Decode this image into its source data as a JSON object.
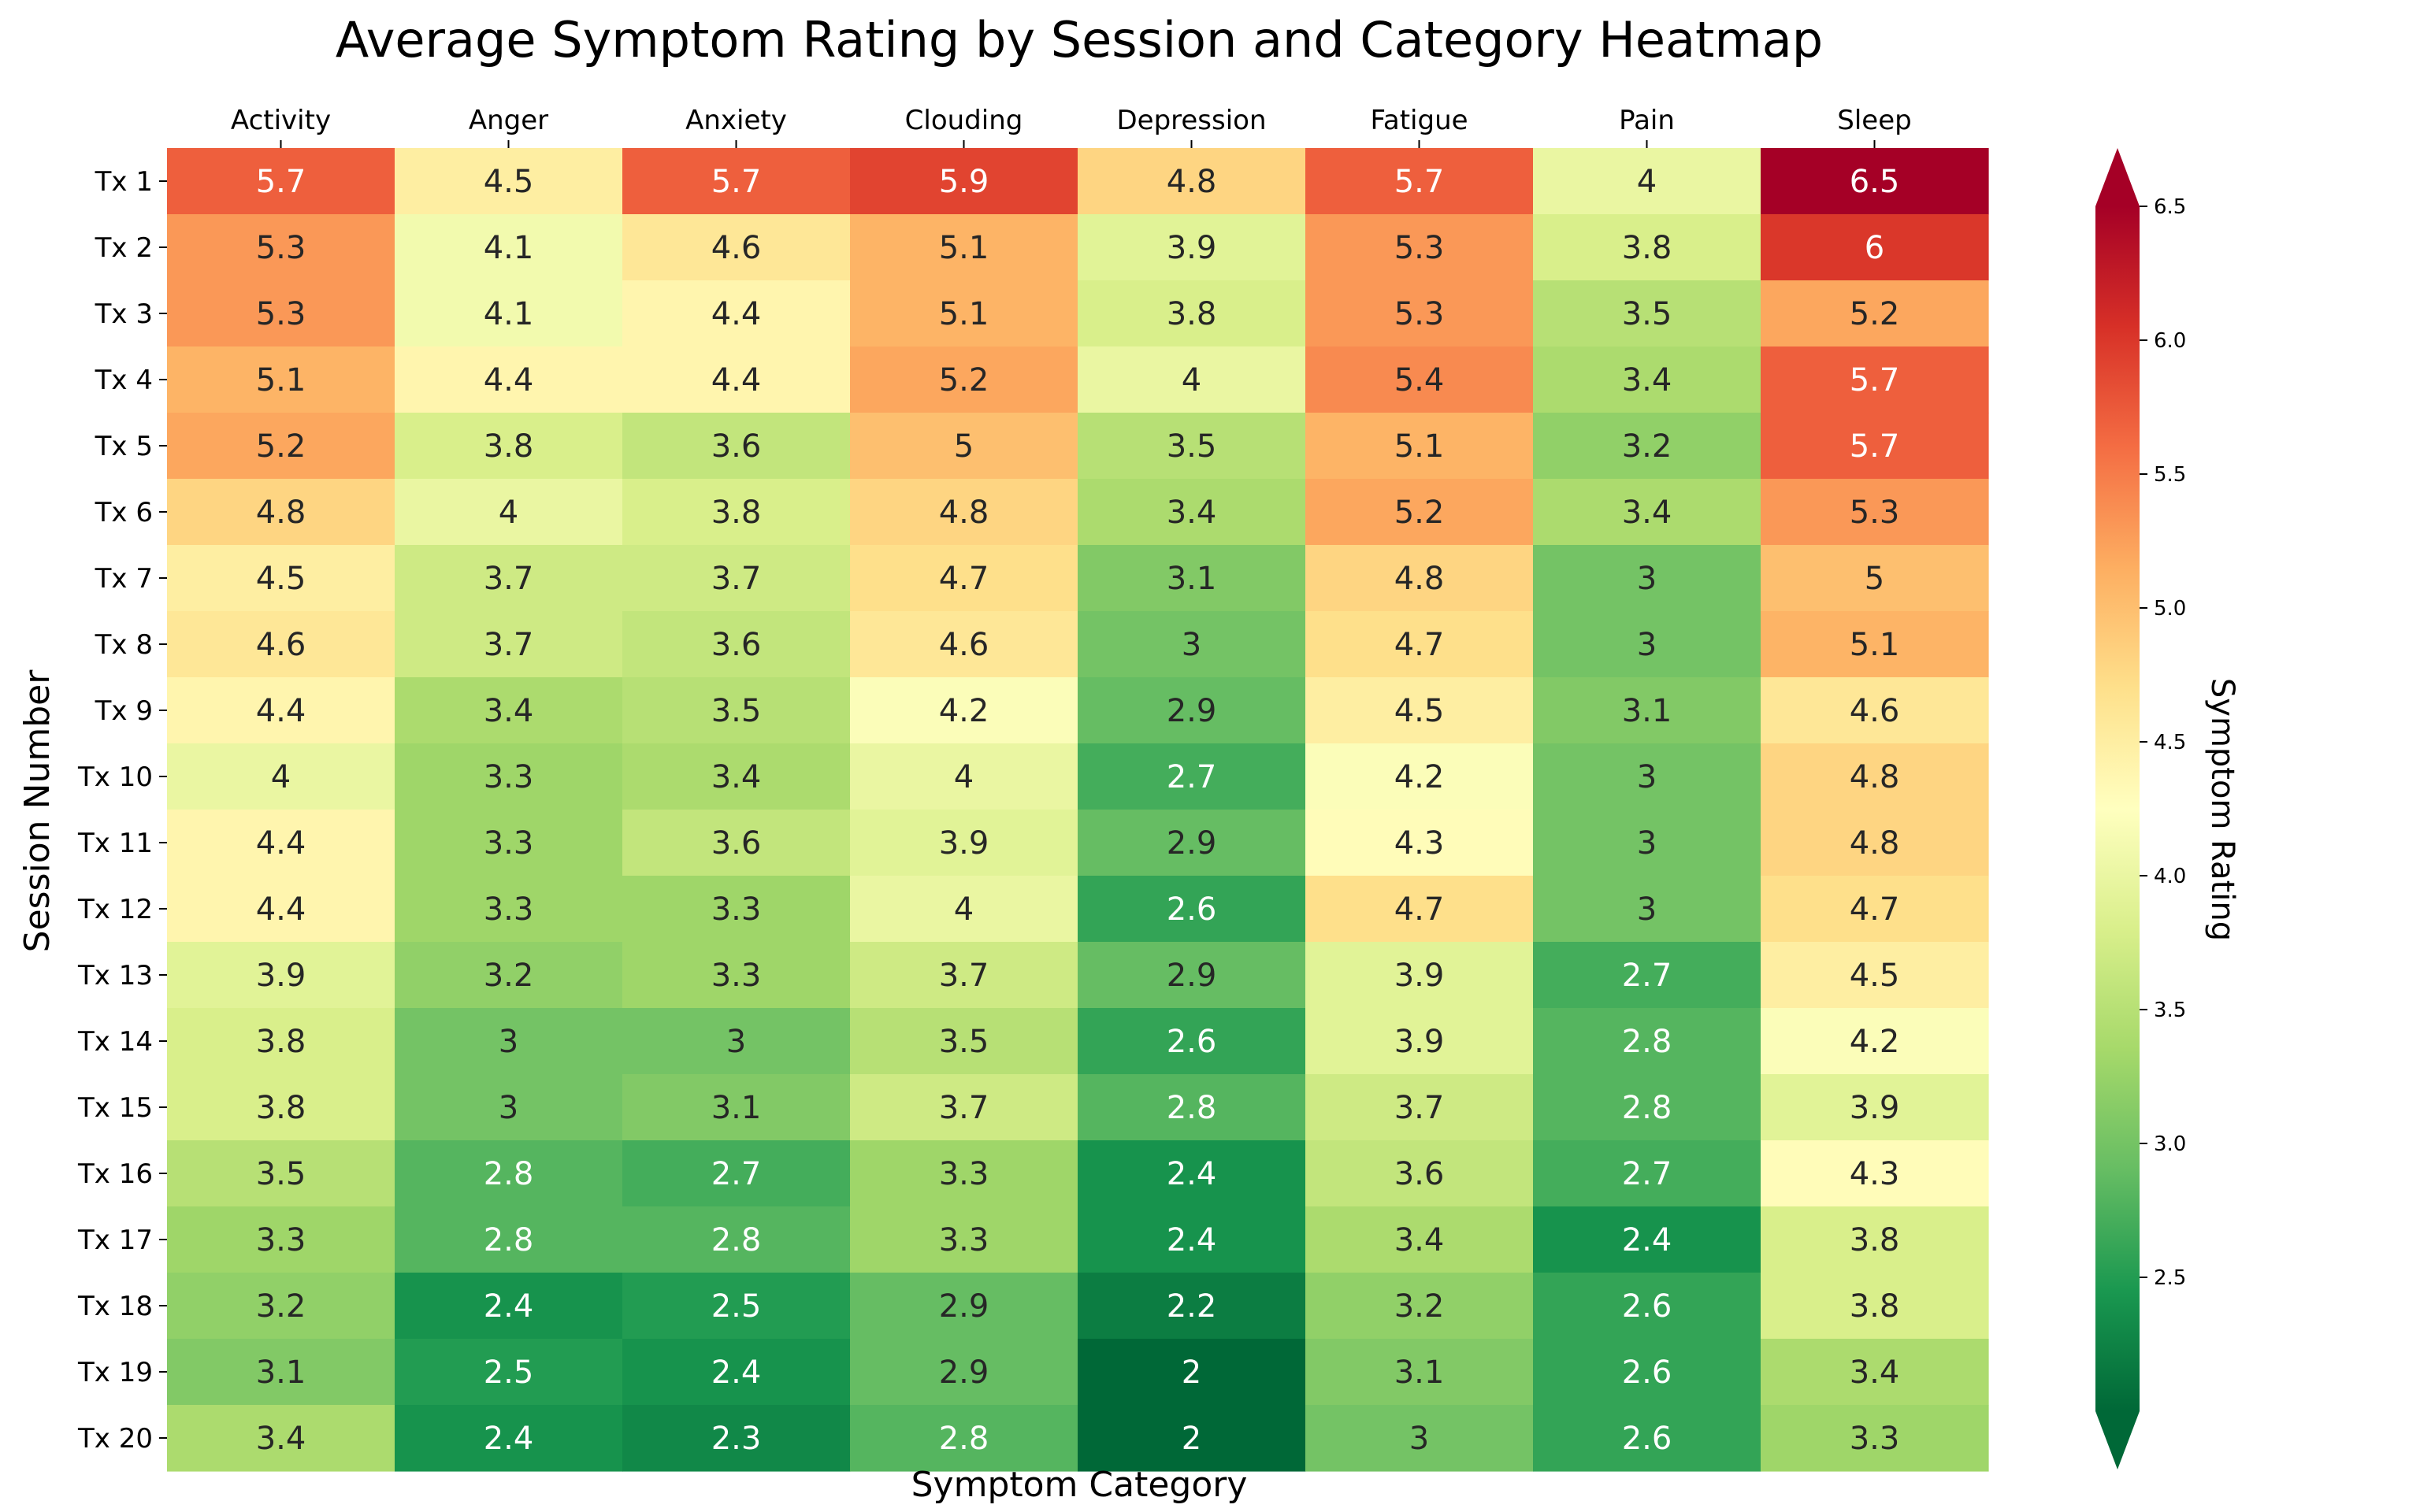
{
  "chart_data": {
    "type": "heatmap",
    "title": "Average Symptom Rating by Session and Category Heatmap",
    "xlabel": "Symptom Category",
    "ylabel": "Session Number",
    "colorbar_label": "Symptom Rating",
    "colormap": "RdYlGn_r",
    "color_range": [
      2.0,
      6.5
    ],
    "colorbar_ticks": [
      "2.5",
      "3.0",
      "3.5",
      "4.0",
      "4.5",
      "5.0",
      "5.5",
      "6.0",
      "6.5"
    ],
    "categories": [
      "Activity",
      "Anger",
      "Anxiety",
      "Clouding",
      "Depression",
      "Fatigue",
      "Pain",
      "Sleep"
    ],
    "rows": [
      "Tx 1",
      "Tx 2",
      "Tx 3",
      "Tx 4",
      "Tx 5",
      "Tx 6",
      "Tx 7",
      "Tx 8",
      "Tx 9",
      "Tx 10",
      "Tx 11",
      "Tx 12",
      "Tx 13",
      "Tx 14",
      "Tx 15",
      "Tx 16",
      "Tx 17",
      "Tx 18",
      "Tx 19",
      "Tx 20"
    ],
    "values": [
      [
        5.7,
        4.5,
        5.7,
        5.9,
        4.8,
        5.7,
        4,
        6.5
      ],
      [
        5.3,
        4.1,
        4.6,
        5.1,
        3.9,
        5.3,
        3.8,
        6
      ],
      [
        5.3,
        4.1,
        4.4,
        5.1,
        3.8,
        5.3,
        3.5,
        5.2
      ],
      [
        5.1,
        4.4,
        4.4,
        5.2,
        4,
        5.4,
        3.4,
        5.7
      ],
      [
        5.2,
        3.8,
        3.6,
        5,
        3.5,
        5.1,
        3.2,
        5.7
      ],
      [
        4.8,
        4,
        3.8,
        4.8,
        3.4,
        5.2,
        3.4,
        5.3
      ],
      [
        4.5,
        3.7,
        3.7,
        4.7,
        3.1,
        4.8,
        3,
        5
      ],
      [
        4.6,
        3.7,
        3.6,
        4.6,
        3,
        4.7,
        3,
        5.1
      ],
      [
        4.4,
        3.4,
        3.5,
        4.2,
        2.9,
        4.5,
        3.1,
        4.6
      ],
      [
        4,
        3.3,
        3.4,
        4,
        2.7,
        4.2,
        3,
        4.8
      ],
      [
        4.4,
        3.3,
        3.6,
        3.9,
        2.9,
        4.3,
        3,
        4.8
      ],
      [
        4.4,
        3.3,
        3.3,
        4,
        2.6,
        4.7,
        3,
        4.7
      ],
      [
        3.9,
        3.2,
        3.3,
        3.7,
        2.9,
        3.9,
        2.7,
        4.5
      ],
      [
        3.8,
        3,
        3,
        3.5,
        2.6,
        3.9,
        2.8,
        4.2
      ],
      [
        3.8,
        3,
        3.1,
        3.7,
        2.8,
        3.7,
        2.8,
        3.9
      ],
      [
        3.5,
        2.8,
        2.7,
        3.3,
        2.4,
        3.6,
        2.7,
        4.3
      ],
      [
        3.3,
        2.8,
        2.8,
        3.3,
        2.4,
        3.4,
        2.4,
        3.8
      ],
      [
        3.2,
        2.4,
        2.5,
        2.9,
        2.2,
        3.2,
        2.6,
        3.8
      ],
      [
        3.1,
        2.5,
        2.4,
        2.9,
        2,
        3.1,
        2.6,
        3.4
      ],
      [
        3.4,
        2.4,
        2.3,
        2.8,
        2,
        3,
        2.6,
        3.3
      ]
    ]
  }
}
